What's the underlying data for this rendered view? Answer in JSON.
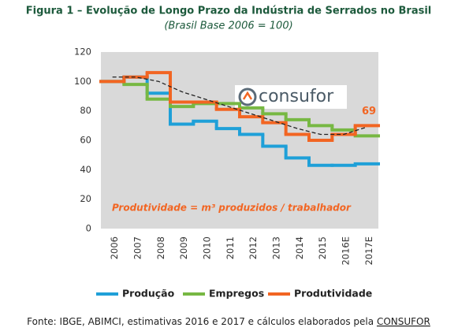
{
  "chart_data": {
    "type": "step_line",
    "title": "Figura 1 – Evolução de Longo Prazo da Indústria de Serrados no Brasil",
    "subtitle": "(Brasil Base 2006 = 100)",
    "categories": [
      "2006",
      "2007",
      "2008",
      "2009",
      "2010",
      "2011",
      "2012",
      "2013",
      "2014",
      "2015",
      "2016E",
      "2017E"
    ],
    "series": [
      {
        "name": "Produção",
        "color": "#1fa0d8",
        "values": [
          100,
          103,
          92,
          71,
          73,
          68,
          64,
          56,
          48,
          43,
          43,
          44
        ]
      },
      {
        "name": "Empregos",
        "color": "#77b843",
        "values": [
          100,
          98,
          88,
          83,
          85,
          85,
          82,
          78,
          74,
          70,
          67,
          63
        ]
      },
      {
        "name": "Produtividade",
        "color": "#f26522",
        "values": [
          100,
          103,
          106,
          86,
          86,
          81,
          76,
          72,
          64,
          60,
          64,
          70
        ]
      }
    ],
    "trend_line": {
      "color": "#222222",
      "values": [
        103,
        103,
        100,
        93,
        88,
        83,
        78,
        73,
        68,
        64,
        64,
        69
      ]
    },
    "ylim": [
      0,
      120
    ],
    "yticks": [
      0,
      20,
      40,
      60,
      80,
      100,
      120
    ],
    "grid": false,
    "annotations": {
      "end_label": "69",
      "formula": "Produtividade = m³ produzidos / trabalhador",
      "logo_text": "consufor"
    },
    "source_prefix": "Fonte: IBGE, ABIMCI, estimativas 2016 e 2017 e cálculos elaborados pela ",
    "source_link": "CONSUFOR"
  }
}
